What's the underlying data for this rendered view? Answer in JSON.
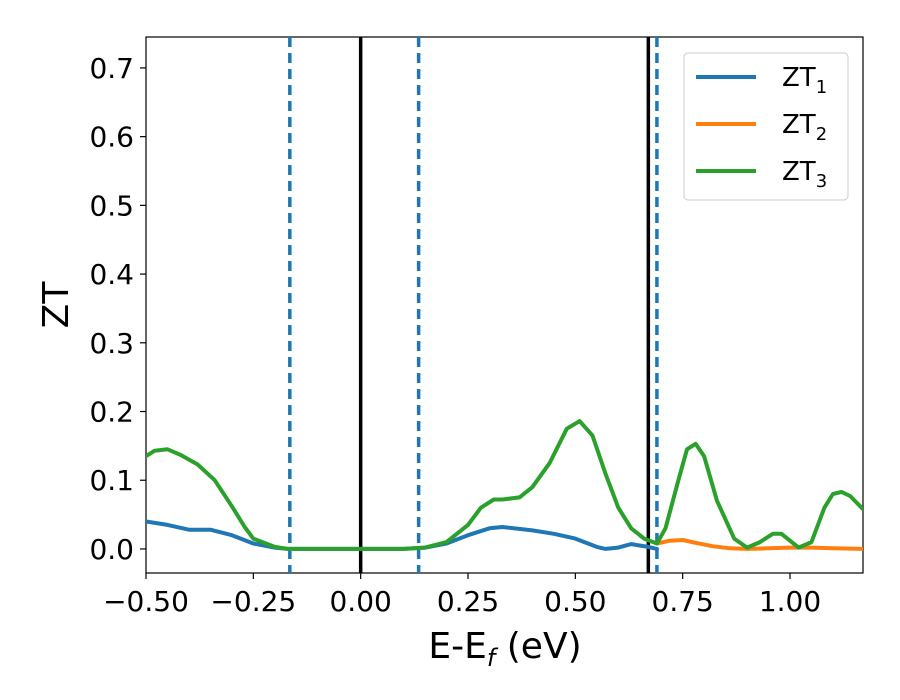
{
  "chart_data": {
    "type": "line",
    "xlabel": "E-E",
    "xlabel_sub": "f",
    "xlabel_unit": " (eV)",
    "ylabel": "ZT",
    "xlim": [
      -0.5,
      1.17
    ],
    "ylim": [
      -0.035,
      0.745
    ],
    "xticks": [
      -0.5,
      -0.25,
      0.0,
      0.25,
      0.5,
      0.75,
      1.0
    ],
    "xtick_labels": [
      "−0.50",
      "−0.25",
      "0.00",
      "0.25",
      "0.50",
      "0.75",
      "1.00"
    ],
    "yticks": [
      0.0,
      0.1,
      0.2,
      0.3,
      0.4,
      0.5,
      0.6,
      0.7
    ],
    "ytick_labels": [
      "0.0",
      "0.1",
      "0.2",
      "0.3",
      "0.4",
      "0.5",
      "0.6",
      "0.7"
    ],
    "grid": false,
    "legend": "top-right",
    "vlines": [
      {
        "x": -0.165,
        "style": "dashed",
        "color": "#1f77b4"
      },
      {
        "x": 0.0,
        "style": "solid",
        "color": "#000000"
      },
      {
        "x": 0.135,
        "style": "dashed",
        "color": "#1f77b4"
      },
      {
        "x": 0.67,
        "style": "solid",
        "color": "#000000"
      },
      {
        "x": 0.69,
        "style": "dashed",
        "color": "#1f77b4"
      }
    ],
    "series": [
      {
        "name": "ZT",
        "name_sub": "1",
        "color": "#1f77b4",
        "x": [
          -0.5,
          -0.45,
          -0.4,
          -0.35,
          -0.3,
          -0.25,
          -0.2,
          -0.17,
          -0.1,
          0.0,
          0.1,
          0.15,
          0.2,
          0.25,
          0.3,
          0.33,
          0.4,
          0.45,
          0.5,
          0.55,
          0.57,
          0.6,
          0.63,
          0.65,
          0.67,
          0.69
        ],
        "y": [
          0.04,
          0.035,
          0.028,
          0.028,
          0.02,
          0.008,
          0.002,
          0.0,
          0.0,
          0.0,
          0.0,
          0.002,
          0.008,
          0.02,
          0.03,
          0.032,
          0.027,
          0.022,
          0.015,
          0.003,
          0.0,
          0.002,
          0.007,
          0.005,
          0.003,
          0.0
        ]
      },
      {
        "name": "ZT",
        "name_sub": "2",
        "color": "#ff7f0e",
        "x": [
          0.69,
          0.72,
          0.75,
          0.78,
          0.82,
          0.86,
          0.9,
          0.95,
          1.0,
          1.05,
          1.1,
          1.17
        ],
        "y": [
          0.008,
          0.012,
          0.013,
          0.009,
          0.004,
          0.001,
          0.0,
          0.001,
          0.002,
          0.002,
          0.001,
          0.0
        ]
      },
      {
        "name": "ZT",
        "name_sub": "3",
        "color": "#2ca02c",
        "x": [
          -0.5,
          -0.48,
          -0.45,
          -0.42,
          -0.38,
          -0.34,
          -0.3,
          -0.27,
          -0.25,
          -0.2,
          -0.17,
          -0.1,
          0.0,
          0.1,
          0.15,
          0.2,
          0.25,
          0.28,
          0.31,
          0.33,
          0.37,
          0.4,
          0.44,
          0.48,
          0.51,
          0.54,
          0.57,
          0.6,
          0.63,
          0.66,
          0.69,
          0.71,
          0.74,
          0.76,
          0.78,
          0.8,
          0.83,
          0.87,
          0.9,
          0.93,
          0.96,
          0.98,
          1.0,
          1.02,
          1.05,
          1.08,
          1.1,
          1.12,
          1.14,
          1.17
        ],
        "y": [
          0.135,
          0.143,
          0.145,
          0.137,
          0.123,
          0.1,
          0.062,
          0.032,
          0.015,
          0.003,
          0.0,
          0.0,
          0.0,
          0.0,
          0.002,
          0.01,
          0.035,
          0.06,
          0.072,
          0.072,
          0.075,
          0.09,
          0.125,
          0.175,
          0.186,
          0.165,
          0.11,
          0.06,
          0.03,
          0.015,
          0.008,
          0.03,
          0.1,
          0.145,
          0.153,
          0.135,
          0.07,
          0.015,
          0.002,
          0.01,
          0.022,
          0.022,
          0.012,
          0.002,
          0.01,
          0.06,
          0.08,
          0.083,
          0.077,
          0.058
        ]
      }
    ]
  }
}
